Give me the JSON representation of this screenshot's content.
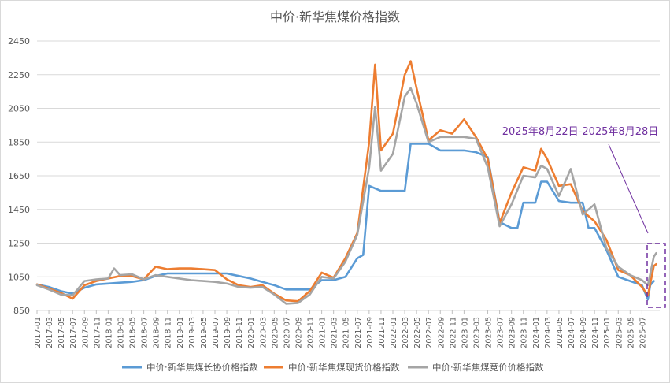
{
  "chart_data": {
    "type": "line",
    "title": "中价·新华焦煤价格指数",
    "annotation": "2025年8月22日-2025年8月28日",
    "y_ticks": [
      850,
      1050,
      1250,
      1450,
      1650,
      1850,
      2050,
      2250,
      2450
    ],
    "ylim": [
      850,
      2450
    ],
    "grid": "horizontal",
    "legend_position": "bottom",
    "colors": {
      "long_term": "#5B9BD5",
      "spot": "#ED7D31",
      "auction": "#A5A5A5",
      "annotation": "#7030A0"
    },
    "categories": [
      "2017-01",
      "2017-03",
      "2017-05",
      "2017-07",
      "2017-09",
      "2017-11",
      "2018-01",
      "2018-03",
      "2018-05",
      "2018-07",
      "2018-09",
      "2018-11",
      "2019-01",
      "2019-03",
      "2019-05",
      "2019-07",
      "2019-09",
      "2019-11",
      "2020-01",
      "2020-03",
      "2020-05",
      "2020-07",
      "2020-09",
      "2020-11",
      "2021-01",
      "2021-03",
      "2021-05",
      "2021-07",
      "2021-09",
      "2021-11",
      "2022-01",
      "2022-03",
      "2022-05",
      "2022-07",
      "2022-09",
      "2022-11",
      "2023-01",
      "2023-03",
      "2023-05",
      "2023-07",
      "2023-09",
      "2023-11",
      "2024-01",
      "2024-03",
      "2024-05",
      "2024-07",
      "2024-09",
      "2024-11",
      "2025-01",
      "2025-03",
      "2025-05",
      "2025-07"
    ],
    "series": [
      {
        "name": "中价·新华焦煤长协价格指数",
        "color": "#5B9BD5",
        "points": [
          [
            "2017-01",
            1005
          ],
          [
            "2017-03",
            990
          ],
          [
            "2017-05",
            965
          ],
          [
            "2017-07",
            950
          ],
          [
            "2017-09",
            985
          ],
          [
            "2017-11",
            1005
          ],
          [
            "2018-01",
            1010
          ],
          [
            "2018-03",
            1015
          ],
          [
            "2018-05",
            1020
          ],
          [
            "2018-07",
            1030
          ],
          [
            "2018-09",
            1055
          ],
          [
            "2018-11",
            1070
          ],
          [
            "2019-01",
            1070
          ],
          [
            "2019-03",
            1070
          ],
          [
            "2019-05",
            1070
          ],
          [
            "2019-07",
            1070
          ],
          [
            "2019-09",
            1070
          ],
          [
            "2019-11",
            1055
          ],
          [
            "2020-01",
            1040
          ],
          [
            "2020-03",
            1020
          ],
          [
            "2020-05",
            1000
          ],
          [
            "2020-07",
            975
          ],
          [
            "2020-09",
            975
          ],
          [
            "2020-11",
            975
          ],
          [
            "2021-01",
            1030
          ],
          [
            "2021-03",
            1030
          ],
          [
            "2021-05",
            1050
          ],
          [
            "2021-07",
            1160
          ],
          [
            "2021-08",
            1180
          ],
          [
            "2021-09",
            1590
          ],
          [
            "2021-11",
            1560
          ],
          [
            "2022-01",
            1560
          ],
          [
            "2022-03",
            1560
          ],
          [
            "2022-04",
            1840
          ],
          [
            "2022-07",
            1840
          ],
          [
            "2022-09",
            1800
          ],
          [
            "2022-11",
            1800
          ],
          [
            "2023-01",
            1800
          ],
          [
            "2023-03",
            1790
          ],
          [
            "2023-05",
            1760
          ],
          [
            "2023-07",
            1375
          ],
          [
            "2023-09",
            1340
          ],
          [
            "2023-10",
            1340
          ],
          [
            "2023-11",
            1490
          ],
          [
            "2024-01",
            1490
          ],
          [
            "2024-02",
            1615
          ],
          [
            "2024-03",
            1615
          ],
          [
            "2024-05",
            1500
          ],
          [
            "2024-07",
            1490
          ],
          [
            "2024-09",
            1490
          ],
          [
            "2024-10",
            1340
          ],
          [
            "2024-11",
            1340
          ],
          [
            "2025-01",
            1210
          ],
          [
            "2025-03",
            1050
          ],
          [
            "2025-05",
            1025
          ],
          [
            "2025-07",
            1000
          ],
          [
            "2025-08",
            915
          ],
          [
            "2025-08",
            1000
          ],
          [
            "2025-09",
            1025
          ]
        ]
      },
      {
        "name": "中价·新华焦煤现货价格指数",
        "color": "#ED7D31",
        "points": [
          [
            "2017-01",
            1005
          ],
          [
            "2017-03",
            980
          ],
          [
            "2017-05",
            955
          ],
          [
            "2017-07",
            920
          ],
          [
            "2017-09",
            1000
          ],
          [
            "2017-11",
            1025
          ],
          [
            "2018-01",
            1040
          ],
          [
            "2018-03",
            1055
          ],
          [
            "2018-05",
            1055
          ],
          [
            "2018-07",
            1035
          ],
          [
            "2018-09",
            1110
          ],
          [
            "2018-11",
            1095
          ],
          [
            "2019-01",
            1100
          ],
          [
            "2019-03",
            1100
          ],
          [
            "2019-05",
            1095
          ],
          [
            "2019-07",
            1090
          ],
          [
            "2019-09",
            1035
          ],
          [
            "2019-11",
            1000
          ],
          [
            "2020-01",
            990
          ],
          [
            "2020-03",
            1000
          ],
          [
            "2020-05",
            950
          ],
          [
            "2020-07",
            910
          ],
          [
            "2020-09",
            905
          ],
          [
            "2020-11",
            965
          ],
          [
            "2021-01",
            1075
          ],
          [
            "2021-03",
            1045
          ],
          [
            "2021-05",
            1160
          ],
          [
            "2021-07",
            1310
          ],
          [
            "2021-09",
            1850
          ],
          [
            "2021-10",
            2310
          ],
          [
            "2021-11",
            1800
          ],
          [
            "2022-01",
            1900
          ],
          [
            "2022-03",
            2250
          ],
          [
            "2022-04",
            2330
          ],
          [
            "2022-05",
            2170
          ],
          [
            "2022-07",
            1860
          ],
          [
            "2022-09",
            1920
          ],
          [
            "2022-11",
            1900
          ],
          [
            "2023-01",
            1985
          ],
          [
            "2023-03",
            1880
          ],
          [
            "2023-05",
            1750
          ],
          [
            "2023-07",
            1370
          ],
          [
            "2023-09",
            1550
          ],
          [
            "2023-11",
            1700
          ],
          [
            "2024-01",
            1680
          ],
          [
            "2024-02",
            1810
          ],
          [
            "2024-03",
            1750
          ],
          [
            "2024-05",
            1590
          ],
          [
            "2024-07",
            1600
          ],
          [
            "2024-09",
            1440
          ],
          [
            "2024-11",
            1380
          ],
          [
            "2025-01",
            1270
          ],
          [
            "2025-03",
            1090
          ],
          [
            "2025-05",
            1060
          ],
          [
            "2025-07",
            990
          ],
          [
            "2025-08",
            940
          ],
          [
            "2025-09",
            1115
          ],
          [
            "2025-09",
            1125
          ]
        ]
      },
      {
        "name": "中价·新华焦煤竞价价格指数",
        "color": "#A5A5A5",
        "points": [
          [
            "2017-01",
            1000
          ],
          [
            "2017-03",
            975
          ],
          [
            "2017-05",
            945
          ],
          [
            "2017-07",
            940
          ],
          [
            "2017-09",
            1025
          ],
          [
            "2017-11",
            1035
          ],
          [
            "2018-01",
            1040
          ],
          [
            "2018-02",
            1100
          ],
          [
            "2018-03",
            1060
          ],
          [
            "2018-05",
            1065
          ],
          [
            "2018-07",
            1035
          ],
          [
            "2018-09",
            1060
          ],
          [
            "2018-11",
            1050
          ],
          [
            "2019-01",
            1040
          ],
          [
            "2019-03",
            1030
          ],
          [
            "2019-05",
            1025
          ],
          [
            "2019-07",
            1020
          ],
          [
            "2019-09",
            1010
          ],
          [
            "2019-11",
            990
          ],
          [
            "2020-01",
            985
          ],
          [
            "2020-03",
            990
          ],
          [
            "2020-05",
            945
          ],
          [
            "2020-07",
            890
          ],
          [
            "2020-09",
            895
          ],
          [
            "2020-11",
            945
          ],
          [
            "2021-01",
            1050
          ],
          [
            "2021-03",
            1040
          ],
          [
            "2021-05",
            1140
          ],
          [
            "2021-07",
            1300
          ],
          [
            "2021-09",
            1700
          ],
          [
            "2021-10",
            2060
          ],
          [
            "2021-11",
            1680
          ],
          [
            "2022-01",
            1780
          ],
          [
            "2022-03",
            2120
          ],
          [
            "2022-04",
            2170
          ],
          [
            "2022-05",
            2080
          ],
          [
            "2022-07",
            1850
          ],
          [
            "2022-09",
            1880
          ],
          [
            "2022-11",
            1880
          ],
          [
            "2023-01",
            1880
          ],
          [
            "2023-03",
            1870
          ],
          [
            "2023-05",
            1700
          ],
          [
            "2023-07",
            1350
          ],
          [
            "2023-09",
            1480
          ],
          [
            "2023-11",
            1650
          ],
          [
            "2024-01",
            1640
          ],
          [
            "2024-02",
            1710
          ],
          [
            "2024-03",
            1690
          ],
          [
            "2024-05",
            1530
          ],
          [
            "2024-07",
            1690
          ],
          [
            "2024-09",
            1420
          ],
          [
            "2024-11",
            1480
          ],
          [
            "2025-01",
            1220
          ],
          [
            "2025-03",
            1110
          ],
          [
            "2025-05",
            1060
          ],
          [
            "2025-07",
            1030
          ],
          [
            "2025-08",
            1000
          ],
          [
            "2025-09",
            1170
          ],
          [
            "2025-09",
            1190
          ]
        ]
      }
    ]
  }
}
